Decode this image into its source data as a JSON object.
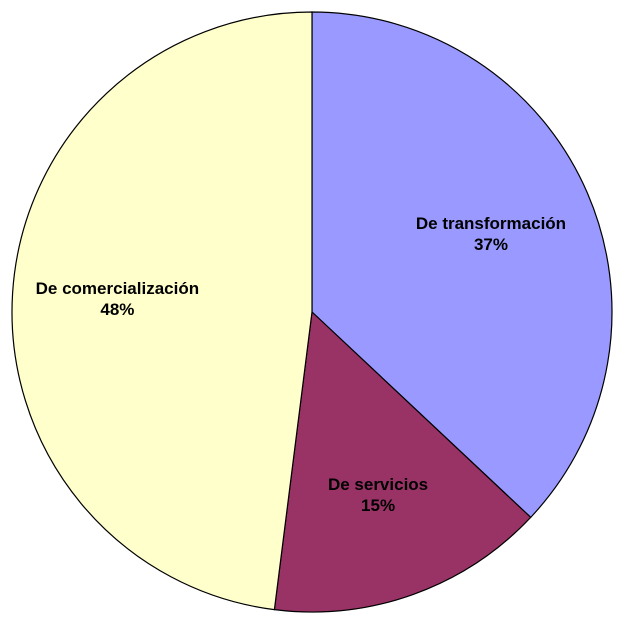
{
  "chart_data": {
    "type": "pie",
    "categories": [
      "De transformación",
      "De servicios",
      "De comercialización"
    ],
    "values": [
      37,
      15,
      48
    ],
    "value_labels": [
      "37%",
      "15%",
      "48%"
    ],
    "colors": [
      "#9999ff",
      "#993366",
      "#ffffcc"
    ]
  }
}
